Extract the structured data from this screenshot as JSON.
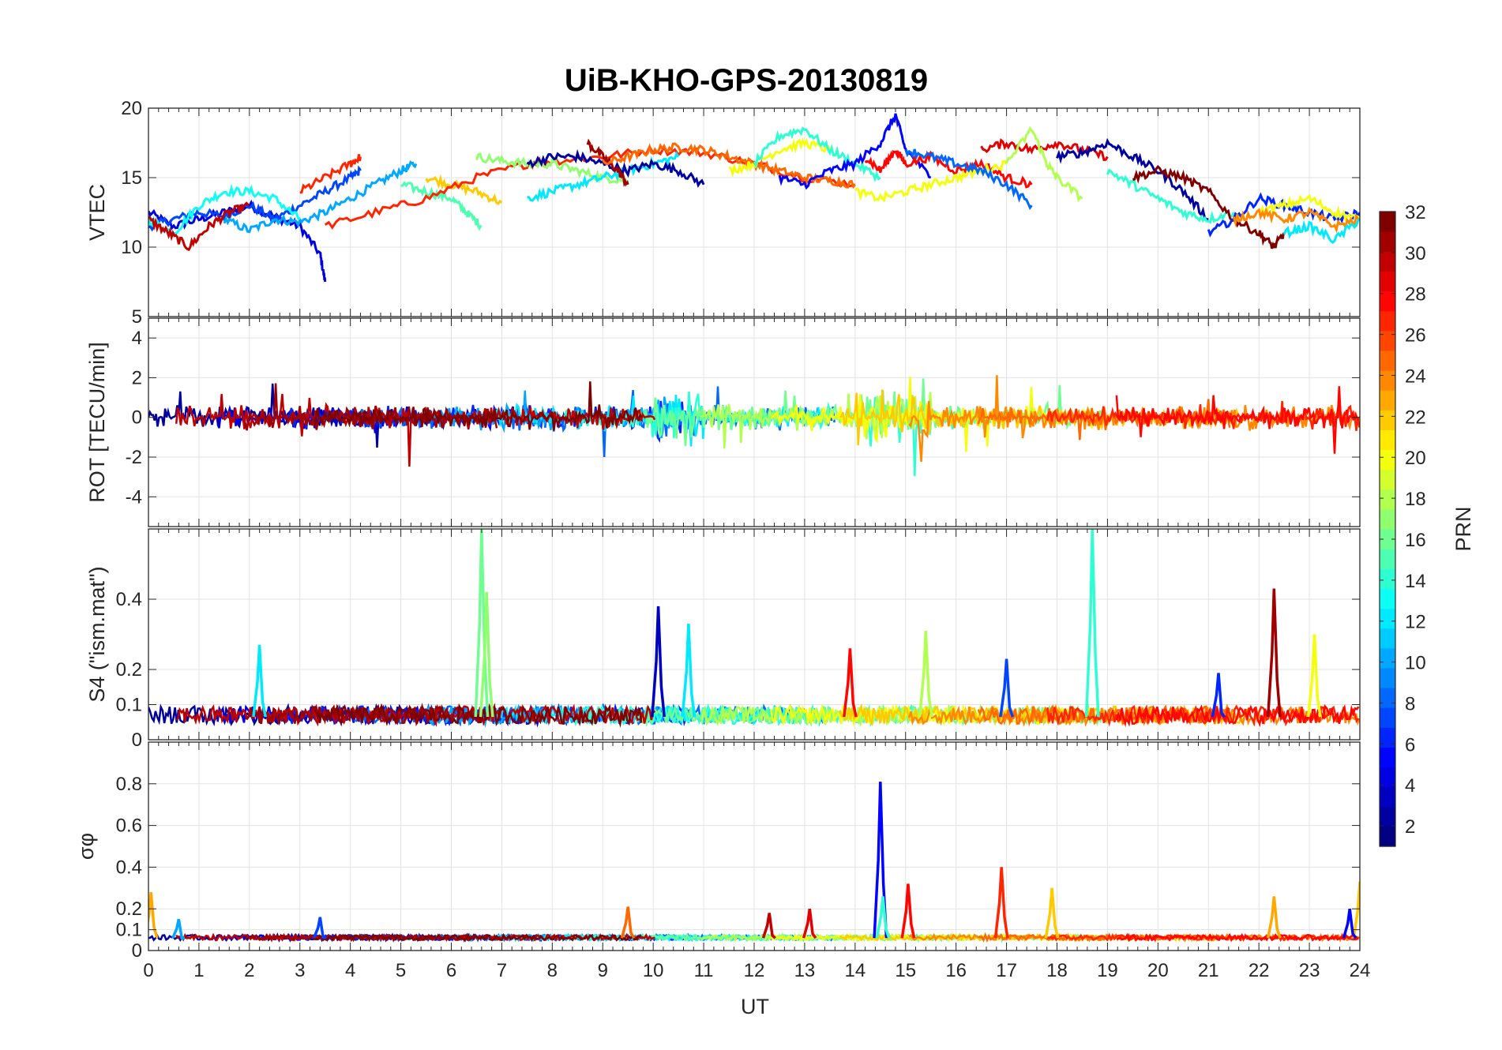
{
  "chart_data": {
    "type": "line",
    "title": "UiB-KHO-GPS-20130819",
    "xlabel": "UT",
    "xlim": [
      0,
      24
    ],
    "xticks": [
      "0",
      "1",
      "2",
      "3",
      "4",
      "5",
      "6",
      "7",
      "8",
      "9",
      "10",
      "11",
      "12",
      "13",
      "14",
      "15",
      "16",
      "17",
      "18",
      "19",
      "20",
      "21",
      "22",
      "23",
      "24"
    ],
    "grid": true,
    "colorbar": {
      "label": "PRN",
      "range": [
        1,
        32
      ],
      "ticks": [
        "2",
        "4",
        "6",
        "8",
        "10",
        "12",
        "14",
        "16",
        "18",
        "20",
        "22",
        "24",
        "26",
        "28",
        "30",
        "32"
      ],
      "colormap": "jet"
    },
    "panels": [
      {
        "name": "vtec",
        "ylabel": "VTEC",
        "ylim": [
          5,
          20
        ],
        "yticks": [
          "5",
          "10",
          "15",
          "20"
        ],
        "series": [
          {
            "prn": 4,
            "x": [
              0,
              0.5,
              1,
              1.5,
              2,
              2.5,
              3,
              3.4,
              3.5
            ],
            "y": [
              12.5,
              11.5,
              12,
              12.5,
              13,
              12.2,
              11.5,
              9.5,
              7.5
            ]
          },
          {
            "prn": 7,
            "x": [
              0,
              0.5,
              1,
              1.5,
              2,
              2.5,
              3,
              3.5,
              4,
              4.2
            ],
            "y": [
              11.5,
              12,
              12.5,
              12.2,
              13,
              12,
              13,
              14,
              15,
              15.5
            ]
          },
          {
            "prn": 10,
            "x": [
              1.5,
              2,
              2.5,
              3,
              3.5,
              4,
              4.5,
              5,
              5.3
            ],
            "y": [
              12,
              11.2,
              12,
              11.8,
              12.5,
              13.5,
              14.5,
              15.5,
              16
            ]
          },
          {
            "prn": 13,
            "x": [
              0,
              0.5,
              1,
              1.5,
              2,
              2.5,
              3
            ],
            "y": [
              12,
              11,
              13,
              14,
              14,
              13.5,
              12
            ]
          },
          {
            "prn": 15,
            "x": [
              5,
              5.5,
              6,
              6.3,
              6.6
            ],
            "y": [
              14.5,
              14,
              13.5,
              12.5,
              11.5
            ]
          },
          {
            "prn": 22,
            "x": [
              5.5,
              6,
              6.5,
              7
            ],
            "y": [
              15,
              14.5,
              14,
              13.2
            ]
          },
          {
            "prn": 30,
            "x": [
              0,
              0.4,
              0.8,
              1.2,
              1.6,
              2
            ],
            "y": [
              12,
              11,
              10,
              11.5,
              12.5,
              13
            ]
          },
          {
            "prn": 27,
            "x": [
              3,
              3.5,
              4,
              4.2
            ],
            "y": [
              14,
              15,
              16,
              16.5
            ]
          },
          {
            "prn": 27,
            "x": [
              3.5,
              4.5,
              5.5,
              6.5,
              7.5,
              8,
              9,
              10,
              11,
              12,
              13,
              14
            ],
            "y": [
              11.5,
              12.5,
              13.5,
              15,
              16,
              16.2,
              16.5,
              17,
              16.8,
              16,
              15,
              14.5
            ]
          },
          {
            "prn": 17,
            "x": [
              6.5,
              7,
              7.5,
              8,
              8.5,
              9,
              9.5
            ],
            "y": [
              16.5,
              16.2,
              16,
              16,
              15.5,
              15,
              14.8
            ]
          },
          {
            "prn": 12,
            "x": [
              7.5,
              8,
              8.5,
              9,
              9.5,
              10,
              10.5
            ],
            "y": [
              13.5,
              14,
              14.5,
              15,
              15.5,
              16,
              16.5
            ]
          },
          {
            "prn": 2,
            "x": [
              7.5,
              8,
              8.5,
              9,
              9.5,
              10,
              10.5,
              11
            ],
            "y": [
              16,
              16.5,
              16.5,
              16,
              15.5,
              16,
              15.5,
              14.5
            ]
          },
          {
            "prn": 31,
            "x": [
              8.7,
              9,
              9.3,
              9.5
            ],
            "y": [
              17.5,
              16.5,
              15.5,
              14.5
            ]
          },
          {
            "prn": 25,
            "x": [
              9,
              9.5,
              10,
              10.5,
              11,
              11.5,
              12,
              12.5,
              13,
              13.5,
              14
            ],
            "y": [
              16,
              16.5,
              17,
              17.2,
              17,
              16.5,
              16,
              15.5,
              15,
              14.8,
              14.5
            ]
          },
          {
            "prn": 20,
            "x": [
              11.5,
              12,
              12.5,
              13,
              13.5
            ],
            "y": [
              15.5,
              16,
              17,
              17.5,
              17
            ]
          },
          {
            "prn": 14,
            "x": [
              12,
              12.5,
              13,
              13.5,
              14,
              14.5
            ],
            "y": [
              16,
              18,
              18.5,
              17,
              16,
              15
            ]
          },
          {
            "prn": 5,
            "x": [
              12.5,
              13,
              13.5,
              14,
              14.5,
              14.8,
              15,
              15.5
            ],
            "y": [
              15,
              14.5,
              15.5,
              16,
              17.5,
              19.5,
              17,
              15
            ]
          },
          {
            "prn": 28,
            "x": [
              14.2,
              14.5,
              14.8,
              15,
              15.5,
              16,
              16.5,
              17,
              17.5
            ],
            "y": [
              16.5,
              15.5,
              17,
              16,
              16.5,
              15.5,
              16,
              15,
              14.5
            ]
          },
          {
            "prn": 20,
            "x": [
              14,
              14.5,
              15,
              15.5,
              16,
              16.5,
              17
            ],
            "y": [
              14,
              13.5,
              14,
              14.5,
              15,
              15.5,
              16
            ]
          },
          {
            "prn": 8,
            "x": [
              15,
              15.5,
              16,
              16.5,
              17,
              17.5
            ],
            "y": [
              17,
              16.5,
              16,
              15.5,
              14.5,
              13
            ]
          },
          {
            "prn": 29,
            "x": [
              16.5,
              17,
              17.5,
              18,
              18.5,
              19
            ],
            "y": [
              17,
              17.5,
              17,
              17.5,
              17,
              16.5
            ]
          },
          {
            "prn": 18,
            "x": [
              17,
              17.5,
              17.8,
              18,
              18.5
            ],
            "y": [
              16,
              18.5,
              16,
              15,
              13.5
            ]
          },
          {
            "prn": 2,
            "x": [
              18,
              18.5,
              19,
              19.5,
              20,
              20.5,
              21
            ],
            "y": [
              16.5,
              16.8,
              17.5,
              16.5,
              15.5,
              14,
              12
            ]
          },
          {
            "prn": 14,
            "x": [
              19,
              19.5,
              20,
              20.5,
              21,
              21.5
            ],
            "y": [
              15.5,
              14.5,
              13.5,
              12.5,
              12,
              12.5
            ]
          },
          {
            "prn": 32,
            "x": [
              19.5,
              20,
              20.5,
              21,
              21.5,
              22,
              22.3,
              22.5
            ],
            "y": [
              15,
              15.5,
              15,
              14,
              12,
              11,
              10,
              11
            ]
          },
          {
            "prn": 6,
            "x": [
              21,
              21.5,
              22,
              22.5,
              23,
              23.5,
              24
            ],
            "y": [
              11,
              12,
              13.5,
              13,
              12.5,
              12,
              12.5
            ]
          },
          {
            "prn": 20,
            "x": [
              22,
              22.5,
              23,
              23.5,
              24
            ],
            "y": [
              12.5,
              13,
              13.5,
              12.5,
              12
            ]
          },
          {
            "prn": 24,
            "x": [
              21.5,
              22,
              22.5,
              23,
              23.5,
              24
            ],
            "y": [
              12,
              12.5,
              12,
              12.5,
              11.5,
              12
            ]
          },
          {
            "prn": 12,
            "x": [
              22.5,
              23,
              23.5,
              24
            ],
            "y": [
              11,
              11.5,
              10.5,
              12
            ]
          }
        ]
      },
      {
        "name": "rot",
        "ylabel": "ROT [TECU/min]",
        "ylim": [
          -5.5,
          5
        ],
        "yticks": [
          "-4",
          "-2",
          "0",
          "2",
          "4"
        ]
      },
      {
        "name": "s4",
        "ylabel": "S4 (\"ism.mat\")",
        "ylim": [
          0,
          0.6
        ],
        "yticks": [
          "0",
          "0.1",
          "0.2",
          "0.4"
        ],
        "peaks": [
          {
            "prn": 16,
            "x": 6.6,
            "y": 0.6
          },
          {
            "prn": 17,
            "x": 6.7,
            "y": 0.42
          },
          {
            "prn": 3,
            "x": 10.1,
            "y": 0.38
          },
          {
            "prn": 12,
            "x": 10.7,
            "y": 0.33
          },
          {
            "prn": 12,
            "x": 2.2,
            "y": 0.27
          },
          {
            "prn": 28,
            "x": 13.9,
            "y": 0.26
          },
          {
            "prn": 18,
            "x": 15.4,
            "y": 0.31
          },
          {
            "prn": 7,
            "x": 17,
            "y": 0.23
          },
          {
            "prn": 14,
            "x": 18.7,
            "y": 0.6
          },
          {
            "prn": 31,
            "x": 22.3,
            "y": 0.43
          },
          {
            "prn": 20,
            "x": 23.1,
            "y": 0.3
          },
          {
            "prn": 6,
            "x": 21.2,
            "y": 0.19
          }
        ]
      },
      {
        "name": "sigma",
        "ylabel": "σφ",
        "ylim": [
          0,
          1
        ],
        "yticks": [
          "0",
          "0.1",
          "0.2",
          "0.4",
          "0.6",
          "0.8"
        ],
        "peaks": [
          {
            "prn": 5,
            "x": 14.5,
            "y": 0.81
          },
          {
            "prn": 28,
            "x": 15.05,
            "y": 0.32
          },
          {
            "prn": 27,
            "x": 16.9,
            "y": 0.4
          },
          {
            "prn": 22,
            "x": 17.9,
            "y": 0.3
          },
          {
            "prn": 25,
            "x": 9.5,
            "y": 0.21
          },
          {
            "prn": 29,
            "x": 13.1,
            "y": 0.2
          },
          {
            "prn": 30,
            "x": 12.3,
            "y": 0.18
          },
          {
            "prn": 23,
            "x": 22.3,
            "y": 0.26
          },
          {
            "prn": 22,
            "x": 24,
            "y": 0.33
          },
          {
            "prn": 23,
            "x": 0.05,
            "y": 0.28
          },
          {
            "prn": 10,
            "x": 0.6,
            "y": 0.15
          },
          {
            "prn": 7,
            "x": 3.4,
            "y": 0.16
          },
          {
            "prn": 14,
            "x": 14.55,
            "y": 0.26
          },
          {
            "prn": 5,
            "x": 23.8,
            "y": 0.2
          }
        ]
      }
    ]
  }
}
